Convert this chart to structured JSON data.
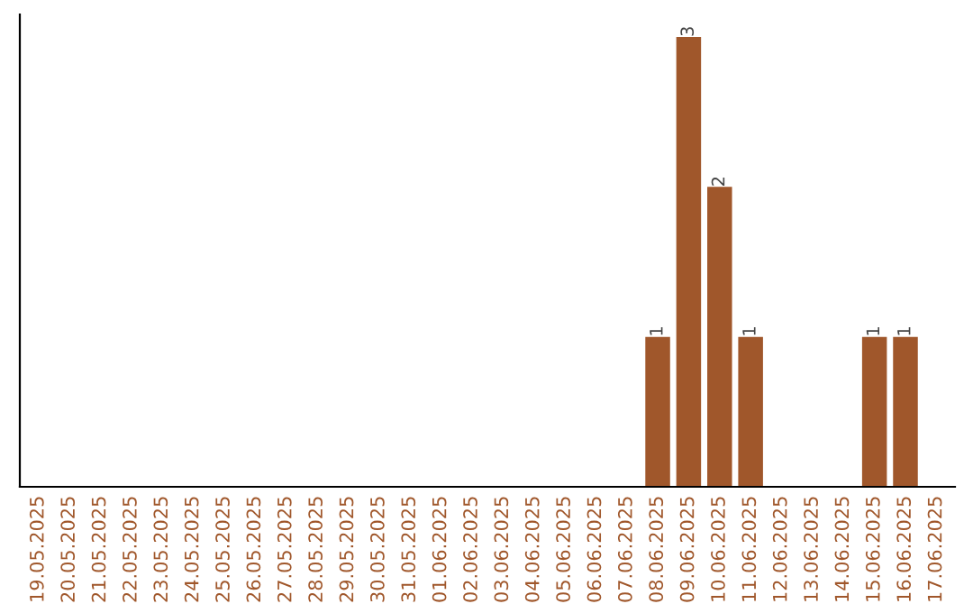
{
  "chart_data": {
    "type": "bar",
    "categories": [
      "19.05.2025",
      "20.05.2025",
      "21.05.2025",
      "22.05.2025",
      "23.05.2025",
      "24.05.2025",
      "25.05.2025",
      "26.05.2025",
      "27.05.2025",
      "28.05.2025",
      "29.05.2025",
      "30.05.2025",
      "31.05.2025",
      "01.06.2025",
      "02.06.2025",
      "03.06.2025",
      "04.06.2025",
      "05.06.2025",
      "06.06.2025",
      "07.06.2025",
      "08.06.2025",
      "09.06.2025",
      "10.06.2025",
      "11.06.2025",
      "12.06.2025",
      "13.06.2025",
      "14.06.2025",
      "15.06.2025",
      "16.06.2025",
      "17.06.2025"
    ],
    "values": [
      null,
      null,
      null,
      null,
      null,
      null,
      null,
      null,
      null,
      null,
      null,
      null,
      null,
      null,
      null,
      null,
      null,
      null,
      null,
      null,
      1,
      3,
      2,
      1,
      null,
      null,
      null,
      1,
      1,
      null
    ],
    "data_labels": true,
    "color": "#a0572b",
    "tick_labels": "x"
  }
}
